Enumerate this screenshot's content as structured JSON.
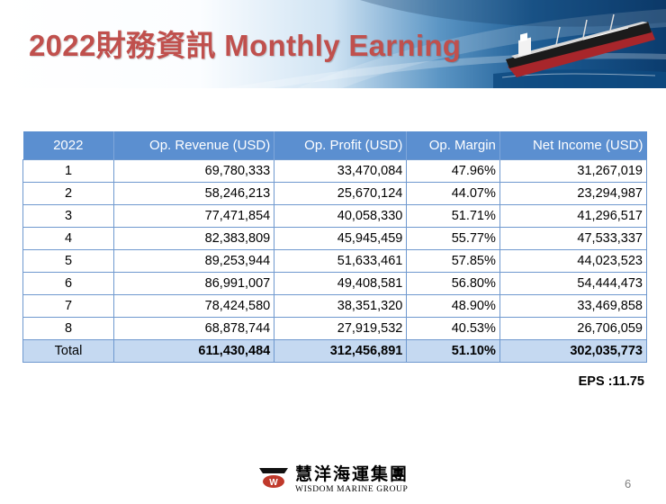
{
  "slide": {
    "title": "2022財務資訊 Monthly Earning",
    "page_number": "6"
  },
  "table": {
    "headers": [
      "2022",
      "Op. Revenue (USD)",
      "Op. Profit (USD)",
      "Op. Margin",
      "Net Income (USD)"
    ],
    "rows": [
      [
        "1",
        "69,780,333",
        "33,470,084",
        "47.96%",
        "31,267,019"
      ],
      [
        "2",
        "58,246,213",
        "25,670,124",
        "44.07%",
        "23,294,987"
      ],
      [
        "3",
        "77,471,854",
        "40,058,330",
        "51.71%",
        "41,296,517"
      ],
      [
        "4",
        "82,383,809",
        "45,945,459",
        "55.77%",
        "47,533,337"
      ],
      [
        "5",
        "89,253,944",
        "51,633,461",
        "57.85%",
        "44,023,523"
      ],
      [
        "6",
        "86,991,007",
        "49,408,581",
        "56.80%",
        "54,444,473"
      ],
      [
        "7",
        "78,424,580",
        "38,351,320",
        "48.90%",
        "33,469,858"
      ],
      [
        "8",
        "68,878,744",
        "27,919,532",
        "40.53%",
        "26,706,059"
      ]
    ],
    "total": [
      "Total",
      "611,430,484",
      "312,456,891",
      "51.10%",
      "302,035,773"
    ]
  },
  "eps": "EPS :11.75",
  "footer": {
    "logo_mark_letter": "W",
    "company_name_cn": "慧洋海運集團",
    "company_name_en": "WISDOM MARINE GROUP"
  },
  "colors": {
    "title": "#c0504d",
    "header_bg": "#5b8fd0",
    "total_bg": "#c5d9f1",
    "border": "#6f99cf"
  },
  "icons": {
    "banner_image": "cargo-ship-icon",
    "logo": "wisdom-logo-icon"
  }
}
